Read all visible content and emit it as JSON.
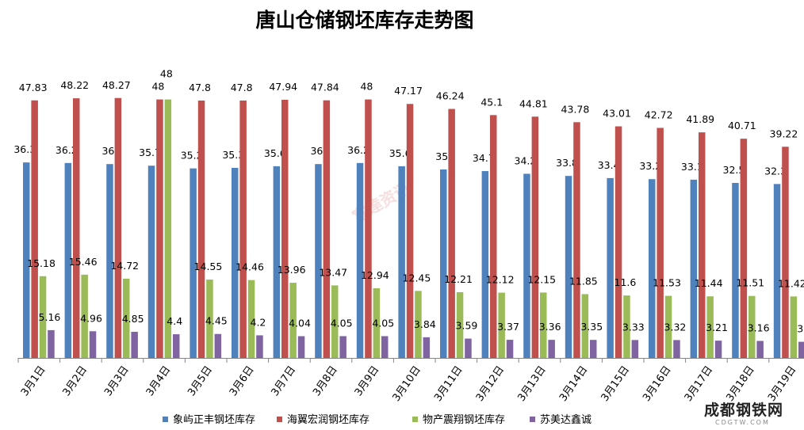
{
  "chart_data": {
    "type": "bar",
    "title": "唐山仓储钢坯库存走势图",
    "xlabel": "",
    "ylabel": "",
    "ylim": [
      0,
      50
    ],
    "grid": false,
    "legend_position": "bottom",
    "categories": [
      "3月1日",
      "3月2日",
      "3月3日",
      "3月4日",
      "3月5日",
      "3月6日",
      "3月7日",
      "3月8日",
      "3月9日",
      "3月10日",
      "3月11日",
      "3月12日",
      "3月13日",
      "3月14日",
      "3月15日",
      "3月16日",
      "3月17日",
      "3月18日",
      "3月19日"
    ],
    "series": [
      {
        "name": "象屿正丰钢坯库存",
        "color": "#4F81BD",
        "values": [
          36.3,
          36.2,
          36,
          35.7,
          35.2,
          35.3,
          35.6,
          36,
          36.2,
          35.6,
          35,
          34.7,
          34.2,
          33.8,
          33.4,
          33.2,
          33.1,
          32.5,
          32.3
        ]
      },
      {
        "name": "海翼宏润钢坯库存",
        "color": "#C0504D",
        "values": [
          47.83,
          48.22,
          48.27,
          48,
          47.8,
          47.8,
          47.94,
          47.84,
          48,
          47.17,
          46.24,
          45.1,
          44.81,
          43.78,
          43.01,
          42.72,
          41.89,
          40.71,
          39.22
        ]
      },
      {
        "name": "物产震翔钢坯库存",
        "color": "#9BBB59",
        "values": [
          15.18,
          15.46,
          14.72,
          48,
          14.55,
          14.46,
          13.96,
          13.47,
          12.94,
          12.45,
          12.21,
          12.12,
          12.15,
          11.85,
          11.6,
          11.53,
          11.44,
          11.51,
          11.42
        ]
      },
      {
        "name": "苏美达鑫诚",
        "color": "#8064A2",
        "values": [
          5.16,
          4.96,
          4.85,
          4.4,
          4.45,
          4.2,
          4.04,
          4.05,
          4.05,
          3.84,
          3.59,
          3.37,
          3.36,
          3.35,
          3.33,
          3.32,
          3.21,
          3.16,
          3
        ]
      }
    ]
  },
  "watermark": "富達资讯",
  "logo": {
    "main": "成都钢铁网",
    "sub": "CDGTW.COM"
  }
}
